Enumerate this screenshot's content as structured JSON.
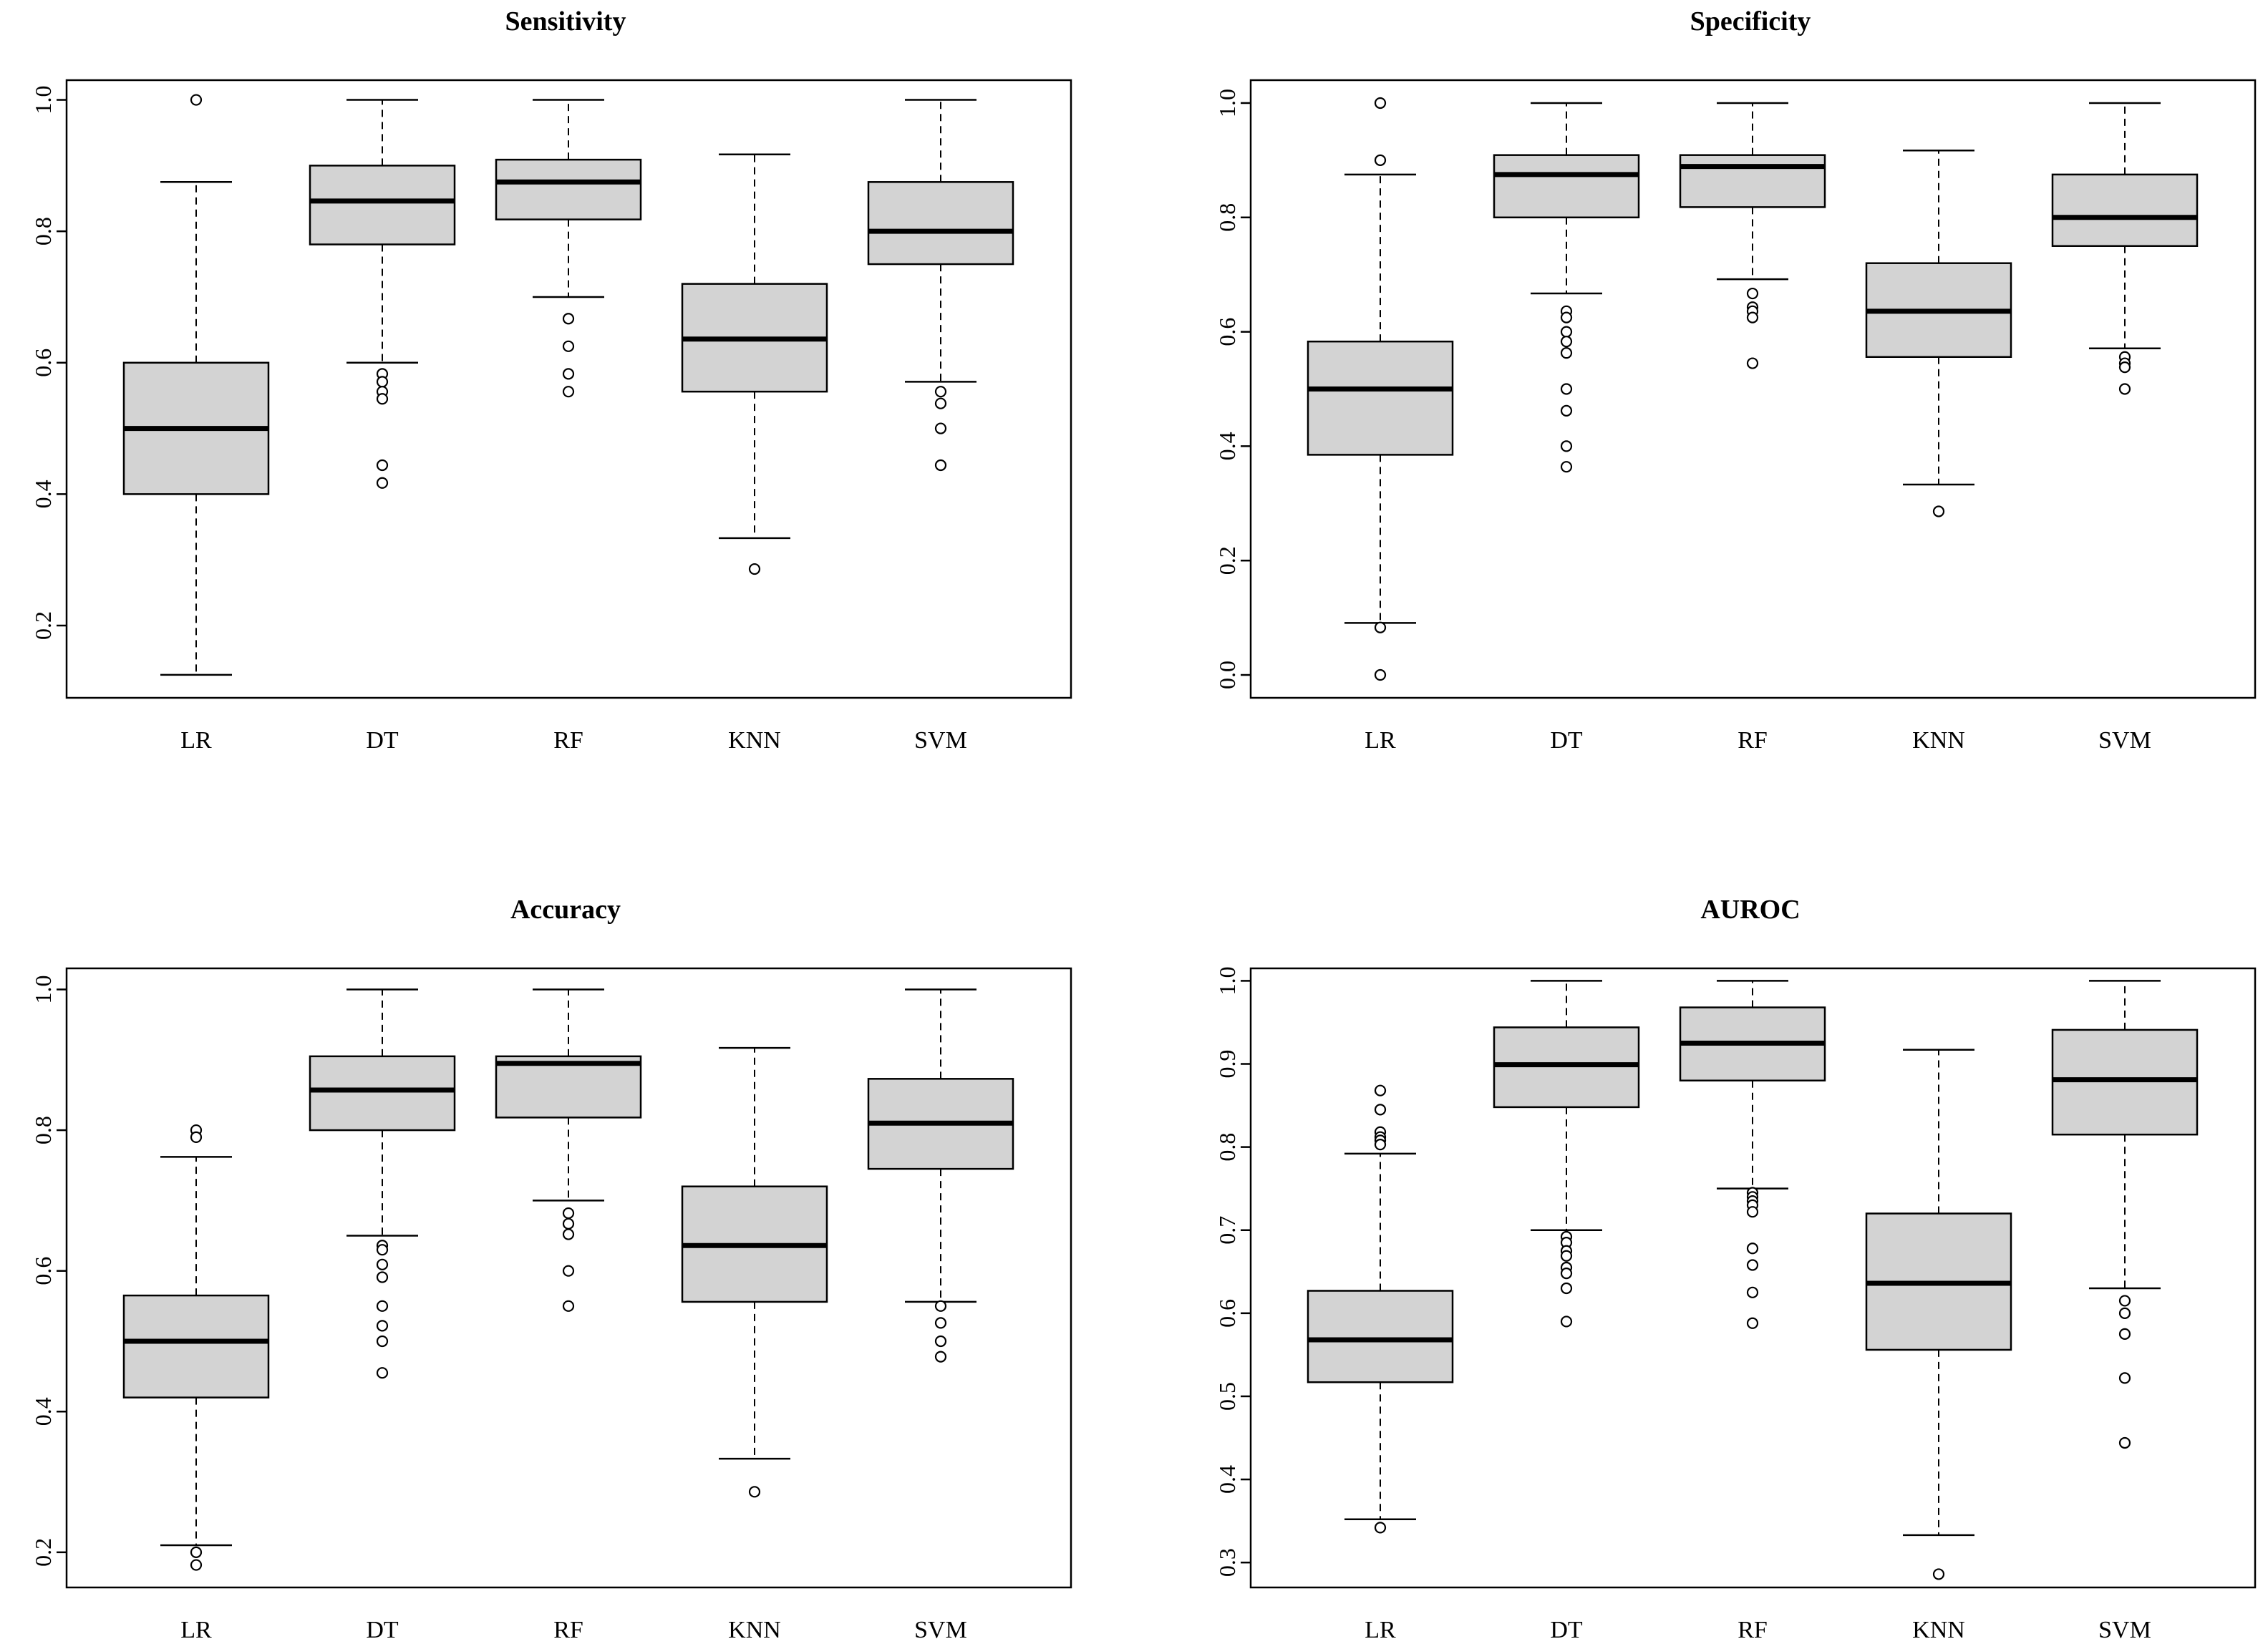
{
  "chart_data": [
    {
      "type": "boxplot",
      "title": "Sensitivity",
      "categories": [
        "LR",
        "DT",
        "RF",
        "KNN",
        "SVM"
      ],
      "yticks": [
        "0.2",
        "0.4",
        "0.6",
        "0.8",
        "1.0"
      ],
      "ylim": [
        0.09,
        1.03
      ],
      "series": [
        {
          "name": "LR",
          "min": 0.125,
          "q1": 0.4,
          "median": 0.5,
          "q3": 0.6,
          "max": 0.875,
          "outliers": [
            1.0
          ]
        },
        {
          "name": "DT",
          "min": 0.6,
          "q1": 0.78,
          "median": 0.846,
          "q3": 0.9,
          "max": 1.0,
          "outliers": [
            0.583,
            0.571,
            0.556,
            0.545,
            0.444,
            0.417
          ]
        },
        {
          "name": "RF",
          "min": 0.7,
          "q1": 0.818,
          "median": 0.875,
          "q3": 0.909,
          "max": 1.0,
          "outliers": [
            0.667,
            0.625,
            0.583,
            0.556
          ]
        },
        {
          "name": "KNN",
          "min": 0.333,
          "q1": 0.556,
          "median": 0.636,
          "q3": 0.72,
          "max": 0.917,
          "outliers": [
            0.286
          ]
        },
        {
          "name": "SVM",
          "min": 0.571,
          "q1": 0.75,
          "median": 0.8,
          "q3": 0.875,
          "max": 1.0,
          "outliers": [
            0.556,
            0.538,
            0.5,
            0.444
          ]
        }
      ]
    },
    {
      "type": "boxplot",
      "title": "Specificity",
      "categories": [
        "LR",
        "DT",
        "RF",
        "KNN",
        "SVM"
      ],
      "yticks": [
        "0.0",
        "0.2",
        "0.4",
        "0.6",
        "0.8",
        "1.0"
      ],
      "ylim": [
        -0.04,
        1.04
      ],
      "series": [
        {
          "name": "LR",
          "min": 0.091,
          "q1": 0.385,
          "median": 0.5,
          "q3": 0.583,
          "max": 0.875,
          "outliers": [
            1.0,
            0.9,
            0.083,
            0.0
          ]
        },
        {
          "name": "DT",
          "min": 0.667,
          "q1": 0.8,
          "median": 0.875,
          "q3": 0.909,
          "max": 1.0,
          "outliers": [
            0.636,
            0.625,
            0.6,
            0.583,
            0.563,
            0.5,
            0.462,
            0.4,
            0.364
          ]
        },
        {
          "name": "RF",
          "min": 0.692,
          "q1": 0.818,
          "median": 0.889,
          "q3": 0.909,
          "max": 1.0,
          "outliers": [
            0.667,
            0.643,
            0.636,
            0.625,
            0.545
          ]
        },
        {
          "name": "KNN",
          "min": 0.333,
          "q1": 0.556,
          "median": 0.636,
          "q3": 0.72,
          "max": 0.917,
          "outliers": [
            0.286
          ]
        },
        {
          "name": "SVM",
          "min": 0.571,
          "q1": 0.75,
          "median": 0.8,
          "q3": 0.875,
          "max": 1.0,
          "outliers": [
            0.556,
            0.545,
            0.538,
            0.5
          ]
        }
      ]
    },
    {
      "type": "boxplot",
      "title": "Accuracy",
      "categories": [
        "LR",
        "DT",
        "RF",
        "KNN",
        "SVM"
      ],
      "yticks": [
        "0.2",
        "0.4",
        "0.6",
        "0.8",
        "1.0"
      ],
      "ylim": [
        0.15,
        1.03
      ],
      "series": [
        {
          "name": "LR",
          "min": 0.21,
          "q1": 0.42,
          "median": 0.5,
          "q3": 0.565,
          "max": 0.762,
          "outliers": [
            0.8,
            0.79,
            0.2,
            0.182
          ]
        },
        {
          "name": "DT",
          "min": 0.65,
          "q1": 0.8,
          "median": 0.857,
          "q3": 0.905,
          "max": 1.0,
          "outliers": [
            0.636,
            0.63,
            0.609,
            0.591,
            0.55,
            0.522,
            0.5,
            0.455
          ]
        },
        {
          "name": "RF",
          "min": 0.7,
          "q1": 0.818,
          "median": 0.895,
          "q3": 0.905,
          "max": 1.0,
          "outliers": [
            0.682,
            0.667,
            0.652,
            0.6,
            0.55
          ]
        },
        {
          "name": "KNN",
          "min": 0.333,
          "q1": 0.556,
          "median": 0.636,
          "q3": 0.72,
          "max": 0.917,
          "outliers": [
            0.286
          ]
        },
        {
          "name": "SVM",
          "min": 0.556,
          "q1": 0.745,
          "median": 0.81,
          "q3": 0.873,
          "max": 1.0,
          "outliers": [
            0.55,
            0.526,
            0.5,
            0.478
          ]
        }
      ]
    },
    {
      "type": "boxplot",
      "title": "AUROC",
      "categories": [
        "LR",
        "DT",
        "RF",
        "KNN",
        "SVM"
      ],
      "yticks": [
        "0.3",
        "0.4",
        "0.5",
        "0.6",
        "0.7",
        "0.8",
        "0.9",
        "1.0"
      ],
      "ylim": [
        0.27,
        1.015
      ],
      "series": [
        {
          "name": "LR",
          "min": 0.352,
          "q1": 0.517,
          "median": 0.568,
          "q3": 0.627,
          "max": 0.792,
          "outliers": [
            0.868,
            0.845,
            0.818,
            0.812,
            0.808,
            0.803,
            0.342
          ]
        },
        {
          "name": "DT",
          "min": 0.7,
          "q1": 0.848,
          "median": 0.899,
          "q3": 0.944,
          "max": 1.0,
          "outliers": [
            0.692,
            0.685,
            0.675,
            0.669,
            0.655,
            0.648,
            0.63,
            0.59
          ]
        },
        {
          "name": "RF",
          "min": 0.75,
          "q1": 0.88,
          "median": 0.925,
          "q3": 0.968,
          "max": 1.0,
          "outliers": [
            0.745,
            0.74,
            0.735,
            0.73,
            0.722,
            0.678,
            0.658,
            0.625,
            0.588
          ]
        },
        {
          "name": "KNN",
          "min": 0.333,
          "q1": 0.556,
          "median": 0.636,
          "q3": 0.72,
          "max": 0.917,
          "outliers": [
            0.286
          ]
        },
        {
          "name": "SVM",
          "min": 0.63,
          "q1": 0.815,
          "median": 0.881,
          "q3": 0.941,
          "max": 1.0,
          "outliers": [
            0.615,
            0.6,
            0.575,
            0.522,
            0.444
          ]
        }
      ]
    }
  ]
}
